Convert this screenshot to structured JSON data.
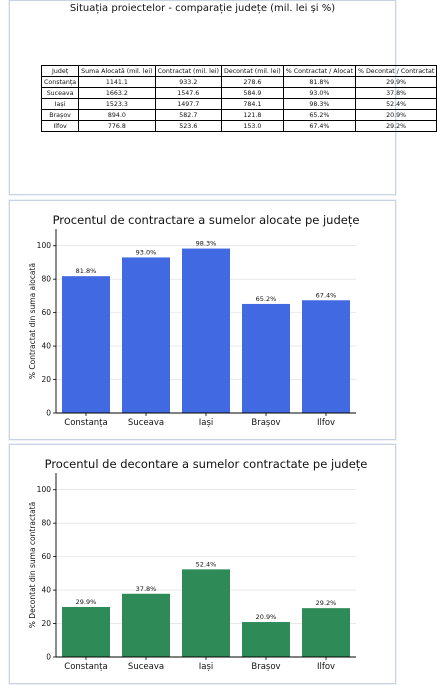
{
  "table": {
    "title": "Situația proiectelor - comparație județe (mil. lei și %)",
    "headers": [
      "Județ",
      "Suma Alocată (mil. lei)",
      "Contractat (mil. lei)",
      "Decontat (mil. lei)",
      "% Contractat / Alocat",
      "% Decontat / Contractat"
    ],
    "rows": [
      [
        "Constanța",
        "1141.1",
        "933.2",
        "278.6",
        "81.8%",
        "29.9%"
      ],
      [
        "Suceava",
        "1663.2",
        "1547.6",
        "584.9",
        "93.0%",
        "37.8%"
      ],
      [
        "Iași",
        "1523.3",
        "1497.7",
        "784.1",
        "98.3%",
        "52.4%"
      ],
      [
        "Brașov",
        "894.0",
        "582.7",
        "121.8",
        "65.2%",
        "20.9%"
      ],
      [
        "Ilfov",
        "776.8",
        "523.6",
        "153.0",
        "67.4%",
        "29.2%"
      ]
    ]
  },
  "chart_data": [
    {
      "type": "bar",
      "title": "Procentul de contractare a sumelor alocate pe județe",
      "xlabel": "",
      "ylabel": "% Contractat din suma alocată",
      "categories": [
        "Constanța",
        "Suceava",
        "Iași",
        "Brașov",
        "Ilfov"
      ],
      "values": [
        81.8,
        93.0,
        98.3,
        65.2,
        67.4
      ],
      "value_labels": [
        "81.8%",
        "93.0%",
        "98.3%",
        "65.2%",
        "67.4%"
      ],
      "ylim": [
        0,
        110
      ],
      "yticks": [
        0,
        20,
        40,
        60,
        80,
        100
      ],
      "grid": true,
      "color": "#4169e1"
    },
    {
      "type": "bar",
      "title": "Procentul de decontare a sumelor contractate pe județe",
      "xlabel": "",
      "ylabel": "% Decontat din suma contractată",
      "categories": [
        "Constanța",
        "Suceava",
        "Iași",
        "Brașov",
        "Ilfov"
      ],
      "values": [
        29.9,
        37.8,
        52.4,
        20.9,
        29.2
      ],
      "value_labels": [
        "29.9%",
        "37.8%",
        "52.4%",
        "20.9%",
        "29.2%"
      ],
      "ylim": [
        0,
        110
      ],
      "yticks": [
        0,
        20,
        40,
        60,
        80,
        100
      ],
      "grid": true,
      "color": "#2e8b57"
    }
  ]
}
